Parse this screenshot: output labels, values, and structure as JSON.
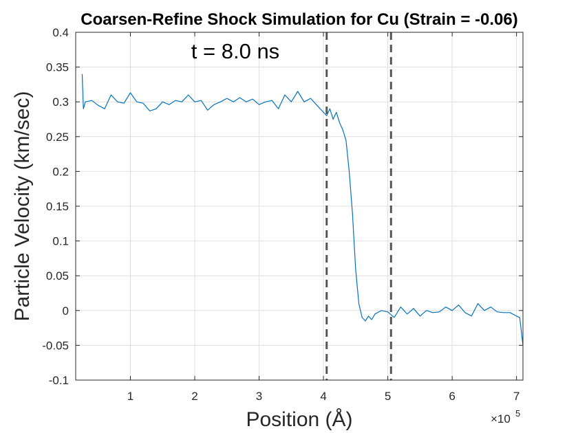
{
  "chart_data": {
    "type": "line",
    "title": "Coarsen-Refine Shock Simulation for Cu (Strain = -0.06)",
    "xlabel": "Position (Å)",
    "ylabel": "Particle Velocity (km/sec)",
    "x_exponent_label": "×10",
    "x_exponent_power": "5",
    "annotation": "t = 8.0 ns",
    "xlim": [
      0.15,
      7.1
    ],
    "ylim": [
      -0.1,
      0.4
    ],
    "x_ticks": [
      1,
      2,
      3,
      4,
      5,
      6,
      7
    ],
    "x_tick_labels": [
      "1",
      "2",
      "3",
      "4",
      "5",
      "6",
      "7"
    ],
    "y_ticks": [
      -0.1,
      -0.05,
      0,
      0.05,
      0.1,
      0.15,
      0.2,
      0.25,
      0.3,
      0.35,
      0.4
    ],
    "y_tick_labels": [
      "-0.1",
      "-0.05",
      "0",
      "0.05",
      "0.1",
      "0.15",
      "0.2",
      "0.25",
      "0.3",
      "0.35",
      "0.4"
    ],
    "grid": true,
    "vlines": [
      4.05,
      5.05
    ],
    "series": [
      {
        "color": "#0072BD",
        "x": [
          0.25,
          0.27,
          0.3,
          0.4,
          0.5,
          0.6,
          0.7,
          0.8,
          0.9,
          1.0,
          1.1,
          1.2,
          1.3,
          1.4,
          1.5,
          1.6,
          1.7,
          1.8,
          1.9,
          2.0,
          2.1,
          2.2,
          2.3,
          2.4,
          2.5,
          2.6,
          2.7,
          2.8,
          2.9,
          3.0,
          3.1,
          3.2,
          3.3,
          3.4,
          3.5,
          3.6,
          3.7,
          3.8,
          3.9,
          4.0,
          4.05,
          4.1,
          4.15,
          4.2,
          4.25,
          4.3,
          4.35,
          4.4,
          4.45,
          4.5,
          4.55,
          4.6,
          4.65,
          4.7,
          4.75,
          4.8,
          4.9,
          5.0,
          5.1,
          5.2,
          5.3,
          5.4,
          5.5,
          5.6,
          5.7,
          5.8,
          5.9,
          6.0,
          6.1,
          6.2,
          6.3,
          6.4,
          6.5,
          6.6,
          6.7,
          6.8,
          6.9,
          7.0,
          7.05,
          7.1
        ],
        "y": [
          0.34,
          0.29,
          0.3,
          0.302,
          0.295,
          0.29,
          0.31,
          0.3,
          0.298,
          0.313,
          0.3,
          0.298,
          0.287,
          0.29,
          0.3,
          0.296,
          0.302,
          0.3,
          0.31,
          0.3,
          0.302,
          0.288,
          0.296,
          0.3,
          0.305,
          0.3,
          0.306,
          0.3,
          0.304,
          0.296,
          0.3,
          0.302,
          0.29,
          0.31,
          0.3,
          0.315,
          0.3,
          0.305,
          0.295,
          0.285,
          0.28,
          0.29,
          0.275,
          0.285,
          0.27,
          0.26,
          0.245,
          0.2,
          0.14,
          0.06,
          0.01,
          -0.01,
          -0.015,
          -0.008,
          -0.013,
          -0.005,
          0.0,
          -0.002,
          -0.01,
          0.005,
          -0.005,
          0.003,
          -0.008,
          0.0,
          -0.003,
          -0.002,
          0.005,
          0.0,
          0.008,
          -0.003,
          -0.008,
          0.01,
          0.0,
          0.005,
          -0.002,
          -0.003,
          -0.003,
          -0.008,
          -0.01,
          -0.05
        ]
      }
    ]
  }
}
